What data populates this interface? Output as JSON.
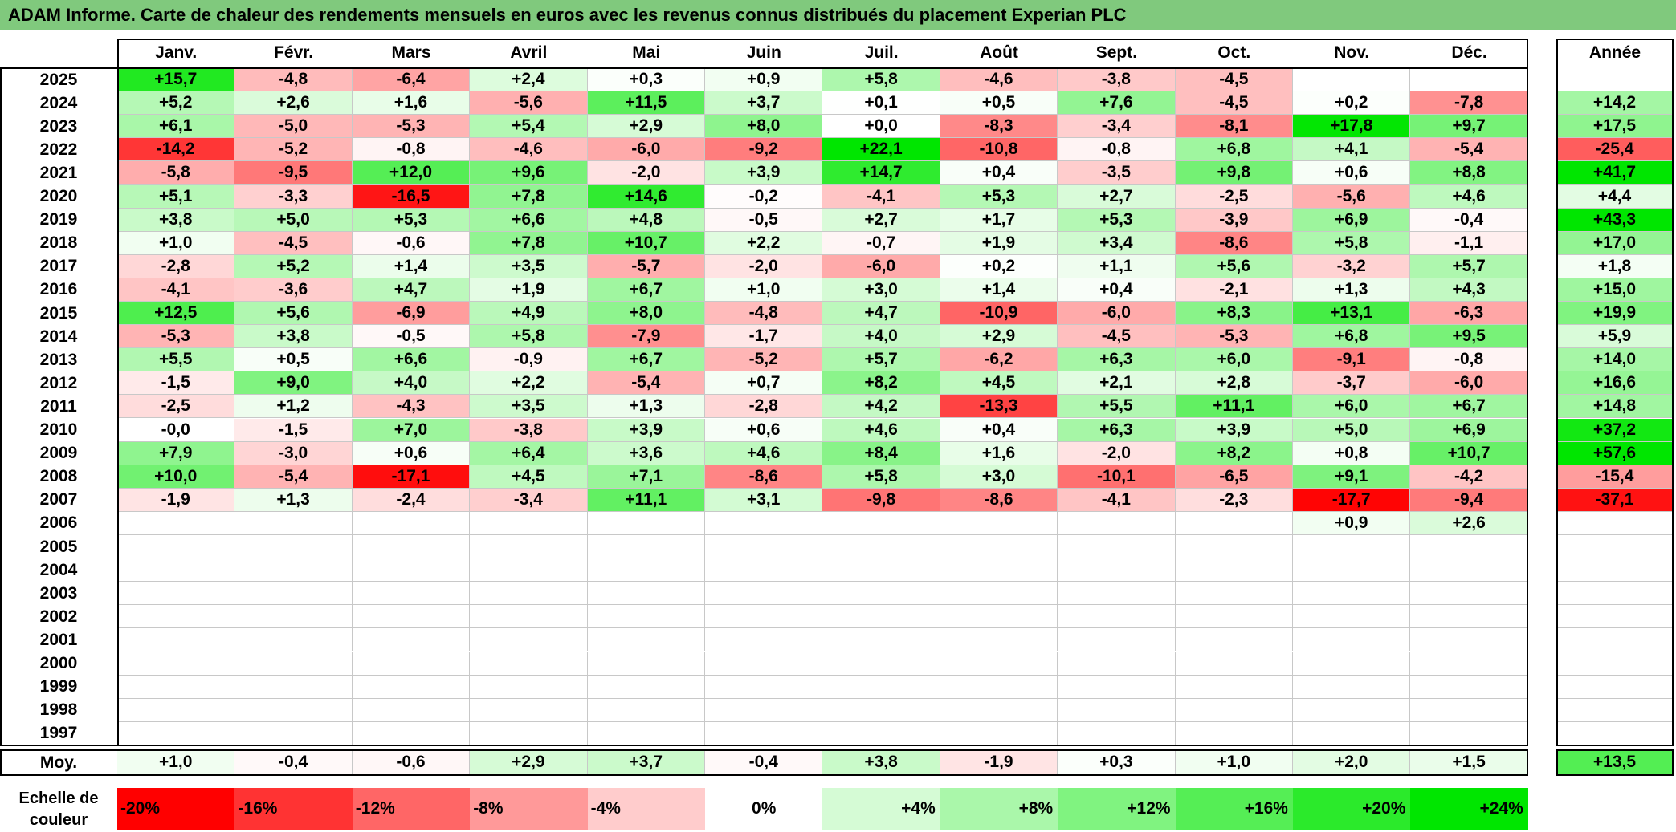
{
  "title": "ADAM Informe. Carte de chaleur des rendements mensuels en euros avec les revenus connus distribués du placement Experian PLC",
  "months": [
    "Janv.",
    "Févr.",
    "Mars",
    "Avril",
    "Mai",
    "Juin",
    "Juil.",
    "Août",
    "Sept.",
    "Oct.",
    "Nov.",
    "Déc."
  ],
  "annual_header": "Année",
  "avg_label": "Moy.",
  "scale_label": "Echelle de couleur",
  "colors": {
    "title_bg": "#80c97d",
    "neg_max": "#ff0000",
    "pos_max": "#00e600",
    "neutral": "#ffffff"
  },
  "chart_data": {
    "type": "heatmap",
    "title": "ADAM Informe. Carte de chaleur des rendements mensuels en euros avec les revenus connus distribués du placement Experian PLC",
    "x": [
      "Janv.",
      "Févr.",
      "Mars",
      "Avril",
      "Mai",
      "Juin",
      "Juil.",
      "Août",
      "Sept.",
      "Oct.",
      "Nov.",
      "Déc."
    ],
    "rows": [
      {
        "year": "2025",
        "values": [
          "+15,7",
          "-4,8",
          "-6,4",
          "+2,4",
          "+0,3",
          "+0,9",
          "+5,8",
          "-4,6",
          "-3,8",
          "-4,5",
          "",
          ""
        ],
        "annual": ""
      },
      {
        "year": "2024",
        "values": [
          "+5,2",
          "+2,6",
          "+1,6",
          "-5,6",
          "+11,5",
          "+3,7",
          "+0,1",
          "+0,5",
          "+7,6",
          "-4,5",
          "+0,2",
          "-7,8"
        ],
        "annual": "+14,2"
      },
      {
        "year": "2023",
        "values": [
          "+6,1",
          "-5,0",
          "-5,3",
          "+5,4",
          "+2,9",
          "+8,0",
          "+0,0",
          "-8,3",
          "-3,4",
          "-8,1",
          "+17,8",
          "+9,7"
        ],
        "annual": "+17,5"
      },
      {
        "year": "2022",
        "values": [
          "-14,2",
          "-5,2",
          "-0,8",
          "-4,6",
          "-6,0",
          "-9,2",
          "+22,1",
          "-10,8",
          "-0,8",
          "+6,8",
          "+4,1",
          "-5,4"
        ],
        "annual": "-25,4"
      },
      {
        "year": "2021",
        "values": [
          "-5,8",
          "-9,5",
          "+12,0",
          "+9,6",
          "-2,0",
          "+3,9",
          "+14,7",
          "+0,4",
          "-3,5",
          "+9,8",
          "+0,6",
          "+8,8"
        ],
        "annual": "+41,7"
      },
      {
        "year": "2020",
        "values": [
          "+5,1",
          "-3,3",
          "-16,5",
          "+7,8",
          "+14,6",
          "-0,2",
          "-4,1",
          "+5,3",
          "+2,7",
          "-2,5",
          "-5,6",
          "+4,6"
        ],
        "annual": "+4,4"
      },
      {
        "year": "2019",
        "values": [
          "+3,8",
          "+5,0",
          "+5,3",
          "+6,6",
          "+4,8",
          "-0,5",
          "+2,7",
          "+1,7",
          "+5,3",
          "-3,9",
          "+6,9",
          "-0,4"
        ],
        "annual": "+43,3"
      },
      {
        "year": "2018",
        "values": [
          "+1,0",
          "-4,5",
          "-0,6",
          "+7,8",
          "+10,7",
          "+2,2",
          "-0,7",
          "+1,9",
          "+3,4",
          "-8,6",
          "+5,8",
          "-1,1"
        ],
        "annual": "+17,0"
      },
      {
        "year": "2017",
        "values": [
          "-2,8",
          "+5,2",
          "+1,4",
          "+3,5",
          "-5,7",
          "-2,0",
          "-6,0",
          "+0,2",
          "+1,1",
          "+5,6",
          "-3,2",
          "+5,7"
        ],
        "annual": "+1,8"
      },
      {
        "year": "2016",
        "values": [
          "-4,1",
          "-3,6",
          "+4,7",
          "+1,9",
          "+6,7",
          "+1,0",
          "+3,0",
          "+1,4",
          "+0,4",
          "-2,1",
          "+1,3",
          "+4,3"
        ],
        "annual": "+15,0"
      },
      {
        "year": "2015",
        "values": [
          "+12,5",
          "+5,6",
          "-6,9",
          "+4,9",
          "+8,0",
          "-4,8",
          "+4,7",
          "-10,9",
          "-6,0",
          "+8,3",
          "+13,1",
          "-6,3"
        ],
        "annual": "+19,9"
      },
      {
        "year": "2014",
        "values": [
          "-5,3",
          "+3,8",
          "-0,5",
          "+5,8",
          "-7,9",
          "-1,7",
          "+4,0",
          "+2,9",
          "-4,5",
          "-5,3",
          "+6,8",
          "+9,5"
        ],
        "annual": "+5,9"
      },
      {
        "year": "2013",
        "values": [
          "+5,5",
          "+0,5",
          "+6,6",
          "-0,9",
          "+6,7",
          "-5,2",
          "+5,7",
          "-6,2",
          "+6,3",
          "+6,0",
          "-9,1",
          "-0,8"
        ],
        "annual": "+14,0"
      },
      {
        "year": "2012",
        "values": [
          "-1,5",
          "+9,0",
          "+4,0",
          "+2,2",
          "-5,4",
          "+0,7",
          "+8,2",
          "+4,5",
          "+2,1",
          "+2,8",
          "-3,7",
          "-6,0"
        ],
        "annual": "+16,6"
      },
      {
        "year": "2011",
        "values": [
          "-2,5",
          "+1,2",
          "-4,3",
          "+3,5",
          "+1,3",
          "-2,8",
          "+4,2",
          "-13,3",
          "+5,5",
          "+11,1",
          "+6,0",
          "+6,7"
        ],
        "annual": "+14,8"
      },
      {
        "year": "2010",
        "values": [
          "-0,0",
          "-1,5",
          "+7,0",
          "-3,8",
          "+3,9",
          "+0,6",
          "+4,6",
          "+0,4",
          "+6,3",
          "+3,9",
          "+5,0",
          "+6,9"
        ],
        "annual": "+37,2"
      },
      {
        "year": "2009",
        "values": [
          "+7,9",
          "-3,0",
          "+0,6",
          "+6,4",
          "+3,6",
          "+4,6",
          "+8,4",
          "+1,6",
          "-2,0",
          "+8,2",
          "+0,8",
          "+10,7"
        ],
        "annual": "+57,6"
      },
      {
        "year": "2008",
        "values": [
          "+10,0",
          "-5,4",
          "-17,1",
          "+4,5",
          "+7,1",
          "-8,6",
          "+5,8",
          "+3,0",
          "-10,1",
          "-6,5",
          "+9,1",
          "-4,2"
        ],
        "annual": "-15,4"
      },
      {
        "year": "2007",
        "values": [
          "-1,9",
          "+1,3",
          "-2,4",
          "-3,4",
          "+11,1",
          "+3,1",
          "-9,8",
          "-8,6",
          "-4,1",
          "-2,3",
          "-17,7",
          "-9,4"
        ],
        "annual": "-37,1"
      },
      {
        "year": "2006",
        "values": [
          "",
          "",
          "",
          "",
          "",
          "",
          "",
          "",
          "",
          "",
          "+0,9",
          "+2,6"
        ],
        "annual": ""
      },
      {
        "year": "2005",
        "values": [
          "",
          "",
          "",
          "",
          "",
          "",
          "",
          "",
          "",
          "",
          "",
          ""
        ],
        "annual": ""
      },
      {
        "year": "2004",
        "values": [
          "",
          "",
          "",
          "",
          "",
          "",
          "",
          "",
          "",
          "",
          "",
          ""
        ],
        "annual": ""
      },
      {
        "year": "2003",
        "values": [
          "",
          "",
          "",
          "",
          "",
          "",
          "",
          "",
          "",
          "",
          "",
          ""
        ],
        "annual": ""
      },
      {
        "year": "2002",
        "values": [
          "",
          "",
          "",
          "",
          "",
          "",
          "",
          "",
          "",
          "",
          "",
          ""
        ],
        "annual": ""
      },
      {
        "year": "2001",
        "values": [
          "",
          "",
          "",
          "",
          "",
          "",
          "",
          "",
          "",
          "",
          "",
          ""
        ],
        "annual": ""
      },
      {
        "year": "2000",
        "values": [
          "",
          "",
          "",
          "",
          "",
          "",
          "",
          "",
          "",
          "",
          "",
          ""
        ],
        "annual": ""
      },
      {
        "year": "1999",
        "values": [
          "",
          "",
          "",
          "",
          "",
          "",
          "",
          "",
          "",
          "",
          "",
          ""
        ],
        "annual": ""
      },
      {
        "year": "1998",
        "values": [
          "",
          "",
          "",
          "",
          "",
          "",
          "",
          "",
          "",
          "",
          "",
          ""
        ],
        "annual": ""
      },
      {
        "year": "1997",
        "values": [
          "",
          "",
          "",
          "",
          "",
          "",
          "",
          "",
          "",
          "",
          "",
          ""
        ],
        "annual": ""
      }
    ],
    "averages": [
      "+1,0",
      "-0,4",
      "-0,6",
      "+2,9",
      "+3,7",
      "-0,4",
      "+3,8",
      "-1,9",
      "+0,3",
      "+1,0",
      "+2,0",
      "+1,5"
    ],
    "average_annual": "+13,5",
    "scale": [
      "-20%",
      "-16%",
      "-12%",
      "-8%",
      "-4%",
      "0%",
      "+4%",
      "+8%",
      "+12%",
      "+16%",
      "+20%",
      "+24%"
    ]
  }
}
